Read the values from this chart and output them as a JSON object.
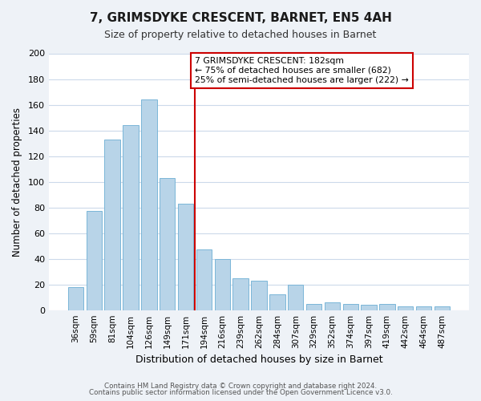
{
  "title": "7, GRIMSDYKE CRESCENT, BARNET, EN5 4AH",
  "subtitle": "Size of property relative to detached houses in Barnet",
  "xlabel": "Distribution of detached houses by size in Barnet",
  "ylabel": "Number of detached properties",
  "bar_color": "#b8d4e8",
  "bar_edge_color": "#7ab6d8",
  "categories": [
    "36sqm",
    "59sqm",
    "81sqm",
    "104sqm",
    "126sqm",
    "149sqm",
    "171sqm",
    "194sqm",
    "216sqm",
    "239sqm",
    "262sqm",
    "284sqm",
    "307sqm",
    "329sqm",
    "352sqm",
    "374sqm",
    "397sqm",
    "419sqm",
    "442sqm",
    "464sqm",
    "487sqm"
  ],
  "values": [
    18,
    77,
    133,
    144,
    164,
    103,
    83,
    47,
    40,
    25,
    23,
    12,
    20,
    5,
    6,
    5,
    4,
    5,
    3,
    3,
    3
  ],
  "vline_index": 7,
  "vline_color": "#cc0000",
  "annotation_title": "7 GRIMSDYKE CRESCENT: 182sqm",
  "annotation_line1": "← 75% of detached houses are smaller (682)",
  "annotation_line2": "25% of semi-detached houses are larger (222) →",
  "annotation_box_color": "#ffffff",
  "annotation_box_edge": "#cc0000",
  "ylim": [
    0,
    200
  ],
  "yticks": [
    0,
    20,
    40,
    60,
    80,
    100,
    120,
    140,
    160,
    180,
    200
  ],
  "footer1": "Contains HM Land Registry data © Crown copyright and database right 2024.",
  "footer2": "Contains public sector information licensed under the Open Government Licence v3.0.",
  "bg_color": "#eef2f7",
  "plot_bg_color": "#ffffff",
  "grid_color": "#ccdaea"
}
